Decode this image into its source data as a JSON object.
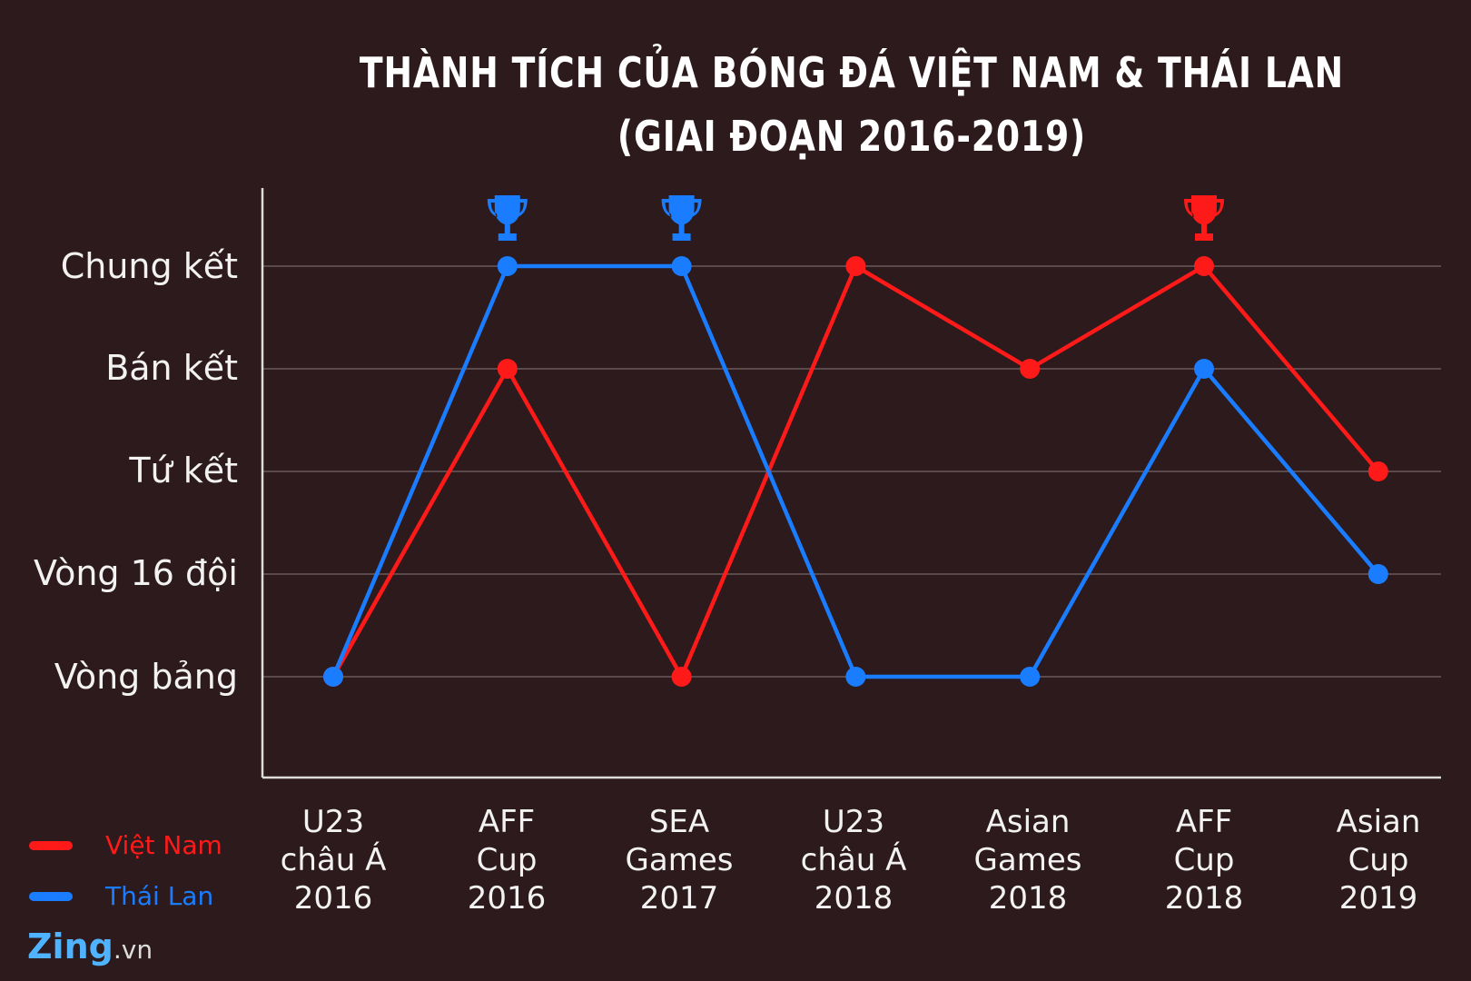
{
  "chart_data": {
    "type": "line",
    "title": "THÀNH TÍCH CỦA BÓNG ĐÁ VIỆT NAM & THÁI LAN",
    "subtitle": "(GIAI ĐOẠN 2016-2019)",
    "categories": [
      "U23\nchâu Á\n2016",
      "AFF\nCup\n2016",
      "SEA\nGames\n2017",
      "U23\nchâu Á\n2018",
      "Asian\nGames\n2018",
      "AFF\nCup\n2018",
      "Asian\nCup\n2019"
    ],
    "y_levels": [
      "Vòng bảng",
      "Vòng 16 đội",
      "Tứ kết",
      "Bán kết",
      "Chung kết"
    ],
    "grid": true,
    "legend_position": "bottom-left",
    "series": [
      {
        "name": "Việt Nam",
        "color": "#ff1a1a",
        "values": [
          "Vòng bảng",
          "Bán kết",
          "Vòng bảng",
          "Chung kết",
          "Bán kết",
          "Chung kết",
          "Tứ kết"
        ],
        "champion_at": [
          "AFF\nCup\n2018"
        ]
      },
      {
        "name": "Thái Lan",
        "color": "#1a7dff",
        "values": [
          "Vòng bảng",
          "Chung kết",
          "Chung kết",
          "Vòng bảng",
          "Vòng bảng",
          "Bán kết",
          "Vòng 16 đội"
        ],
        "champion_at": [
          "AFF\nCup\n2016",
          "SEA\nGames\n2017"
        ]
      }
    ]
  },
  "logo": {
    "main": "Zing",
    "suffix": ".vn"
  },
  "icons": {
    "champion": "trophy-icon"
  }
}
